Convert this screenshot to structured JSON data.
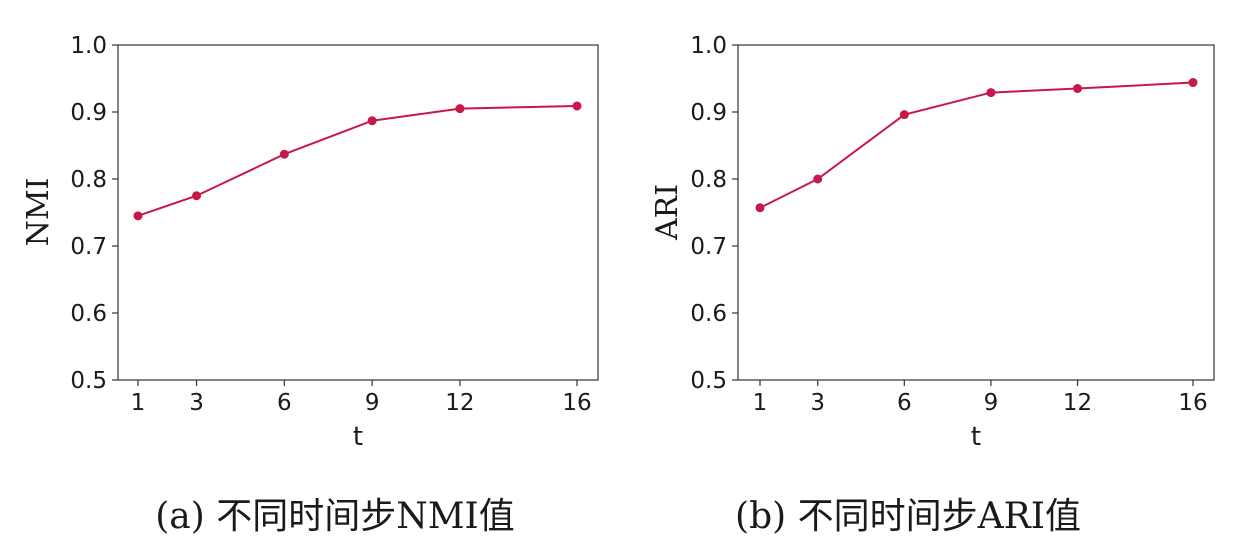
{
  "chart_data": [
    {
      "type": "line",
      "caption": "(a) 不同时间步NMI值",
      "xlabel": "t",
      "ylabel": "NMI",
      "x": [
        1,
        3,
        6,
        9,
        12,
        16
      ],
      "xticks": [
        "1",
        "3",
        "6",
        "9",
        "12",
        "16"
      ],
      "yticks": [
        "0.5",
        "0.6",
        "0.7",
        "0.8",
        "0.9",
        "1.0"
      ],
      "ylim": [
        0.5,
        1.0
      ],
      "series": [
        {
          "values": [
            0.745,
            0.775,
            0.837,
            0.887,
            0.905,
            0.909
          ],
          "color": "#c8184a"
        }
      ]
    },
    {
      "type": "line",
      "caption": "(b) 不同时间步ARI值",
      "xlabel": "t",
      "ylabel": "ARI",
      "x": [
        1,
        3,
        6,
        9,
        12,
        16
      ],
      "xticks": [
        "1",
        "3",
        "6",
        "9",
        "12",
        "16"
      ],
      "yticks": [
        "0.5",
        "0.6",
        "0.7",
        "0.8",
        "0.9",
        "1.0"
      ],
      "ylim": [
        0.5,
        1.0
      ],
      "series": [
        {
          "values": [
            0.757,
            0.8,
            0.896,
            0.929,
            0.935,
            0.944
          ],
          "color": "#c8184a"
        }
      ]
    }
  ]
}
